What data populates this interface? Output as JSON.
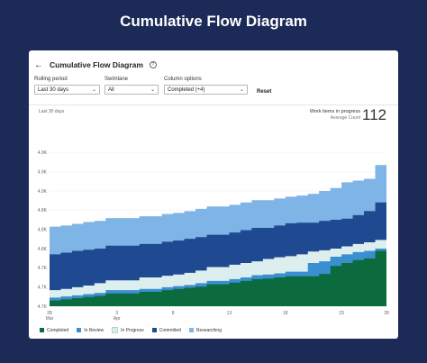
{
  "page_title": "Cumulative Flow Diagram",
  "header": {
    "title": "Cumulative Flow Diagram",
    "back_icon": "arrow-left-icon",
    "help_icon": "question-circle-icon"
  },
  "filters": {
    "rolling_period": {
      "label": "Rolling period",
      "value": "Last 30 days"
    },
    "swimlane": {
      "label": "Swimlane",
      "value": "All"
    },
    "column_options": {
      "label": "Column options",
      "value": "Completed (+4)"
    },
    "reset_label": "Reset"
  },
  "summary": {
    "period_label": "Last 30 days",
    "wip_label": "Work items in progress",
    "avg_label": "Average Count",
    "wip_count": "112"
  },
  "colors": {
    "background": "#1b2a57",
    "completed": "#0b6b3e",
    "in_review": "#3a8fd0",
    "in_progress": "#dcefee",
    "committed": "#1f4a92",
    "researching": "#7fb4e6"
  },
  "chart_data": {
    "type": "area",
    "stacked": true,
    "title": "",
    "xlabel": "",
    "ylabel": "",
    "ylim": [
      4700,
      5000
    ],
    "yticks": [
      4700,
      4733,
      4767,
      4800,
      4833,
      4867,
      4900,
      4933,
      4967
    ],
    "ytick_labels": [
      "4.7K",
      "4.7K",
      "4.7K",
      "4.8K",
      "4.8K",
      "4.8K",
      "4.9K",
      "4.9K",
      "4.9K"
    ],
    "x": [
      "Mar 28",
      "Mar 29",
      "Mar 30",
      "Mar 31",
      "Apr 1",
      "Apr 2",
      "Apr 3",
      "Apr 4",
      "Apr 5",
      "Apr 6",
      "Apr 7",
      "Apr 8",
      "Apr 9",
      "Apr 10",
      "Apr 11",
      "Apr 12",
      "Apr 13",
      "Apr 14",
      "Apr 15",
      "Apr 16",
      "Apr 17",
      "Apr 18",
      "Apr 19",
      "Apr 20",
      "Apr 21",
      "Apr 22",
      "Apr 23",
      "Apr 24",
      "Apr 25",
      "Apr 26",
      "Apr 27"
    ],
    "xtick_labels": [
      {
        "label": "28",
        "sublabel": "Mar",
        "index": 0
      },
      {
        "label": "3",
        "sublabel": "Apr",
        "index": 6
      },
      {
        "label": "8",
        "sublabel": "",
        "index": 11
      },
      {
        "label": "13",
        "sublabel": "",
        "index": 16
      },
      {
        "label": "18",
        "sublabel": "",
        "index": 21
      },
      {
        "label": "23",
        "sublabel": "",
        "index": 26
      },
      {
        "label": "28",
        "sublabel": "",
        "index": 30
      }
    ],
    "series_cumulative_tops": [
      {
        "name": "Completed",
        "color": "#0b6b3e",
        "values": [
          4710,
          4712,
          4714,
          4716,
          4718,
          4722,
          4722,
          4722,
          4725,
          4725,
          4728,
          4730,
          4732,
          4734,
          4738,
          4738,
          4741,
          4744,
          4747,
          4748,
          4750,
          4752,
          4752,
          4752,
          4756,
          4770,
          4775,
          4780,
          4783,
          4796,
          4798
        ]
      },
      {
        "name": "In Review",
        "color": "#3a8fd0",
        "values": [
          4715,
          4717,
          4719,
          4721,
          4723,
          4728,
          4728,
          4728,
          4730,
          4730,
          4733,
          4735,
          4737,
          4740,
          4744,
          4744,
          4747,
          4750,
          4754,
          4755,
          4757,
          4760,
          4760,
          4775,
          4778,
          4786,
          4790,
          4794,
          4796,
          4800,
          4802
        ]
      },
      {
        "name": "In Progress",
        "color": "#dcefee",
        "values": [
          4728,
          4730,
          4733,
          4736,
          4740,
          4745,
          4745,
          4745,
          4750,
          4750,
          4753,
          4755,
          4758,
          4762,
          4768,
          4768,
          4772,
          4775,
          4778,
          4782,
          4785,
          4787,
          4790,
          4795,
          4797,
          4800,
          4804,
          4808,
          4811,
          4815,
          4820
        ]
      },
      {
        "name": "Committed",
        "color": "#1f4a92",
        "values": [
          4790,
          4793,
          4796,
          4798,
          4800,
          4805,
          4805,
          4805,
          4808,
          4808,
          4812,
          4814,
          4817,
          4820,
          4824,
          4824,
          4828,
          4832,
          4836,
          4836,
          4840,
          4844,
          4845,
          4845,
          4848,
          4850,
          4852,
          4858,
          4865,
          4880,
          4890
        ]
      },
      {
        "name": "Researching",
        "color": "#7fb4e6",
        "values": [
          4838,
          4840,
          4843,
          4846,
          4848,
          4853,
          4853,
          4853,
          4856,
          4856,
          4860,
          4862,
          4865,
          4869,
          4873,
          4873,
          4876,
          4880,
          4884,
          4884,
          4887,
          4890,
          4892,
          4895,
          4900,
          4905,
          4915,
          4918,
          4921,
          4945,
          4960
        ]
      }
    ],
    "grid": true,
    "legend_position": "bottom-left"
  }
}
